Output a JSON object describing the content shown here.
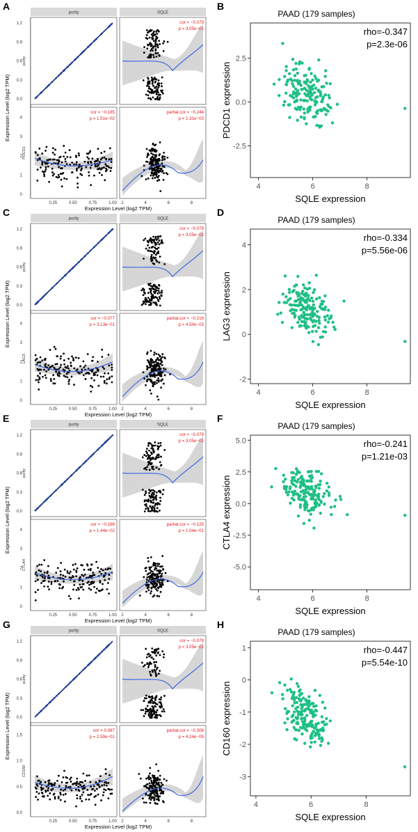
{
  "chart_data": [
    {
      "panel": "A",
      "type": "scatter",
      "facets": [
        "purity",
        "SQLE"
      ],
      "rows": [
        "purity",
        "PDCD1"
      ],
      "ylabel": "Expression Level (log2 TPM)",
      "xlabel": "Expression Level (log2 TPM)",
      "purity_x_ticks": [
        "0.25",
        "0.50",
        "0.75",
        "1.00"
      ],
      "sqle_x_ticks": [
        "2",
        "4",
        "6",
        "8"
      ],
      "purity_row_y_ticks": [
        "0.0",
        "0.3",
        "0.6",
        "0.9",
        "1.2"
      ],
      "gene_row_y_ticks": [
        "0",
        "1",
        "2",
        "3",
        "4"
      ],
      "cor_purity": "cor = −0.079",
      "p_purity": "p = 3.05e−01",
      "cor_gene": "cor = −0.185",
      "p_gene": "p = 1.51e−02",
      "pcor": "partial.cor = −0.244",
      "pp": "p = 1.31e−03",
      "gene_ylim": [
        0,
        4.3
      ],
      "gene_mid": 1.6,
      "gene_spread": 0.9,
      "gene_fit_end": 1.8
    },
    {
      "panel": "B",
      "type": "scatter",
      "title": "PAAD (179 samples)",
      "xlabel": "SQLE expression",
      "ylabel": "PDCD1 expression",
      "rho": "rho=-0.347",
      "p": "p=2.3e-06",
      "xlim": [
        3.7,
        9.6
      ],
      "ylim": [
        -4.3,
        4.5
      ],
      "x_ticks": [
        4,
        6,
        8
      ],
      "y_ticks": [
        -2.5,
        0,
        2.5
      ],
      "x_tick_labels": [
        "4",
        "6",
        "8"
      ],
      "y_tick_labels": [
        "-2.5",
        "0.0",
        "2.5"
      ],
      "center": 0.5,
      "slope": -0.5,
      "spread": 1.3
    },
    {
      "panel": "C",
      "type": "scatter",
      "facets": [
        "purity",
        "SQLE"
      ],
      "rows": [
        "purity",
        "LAG3"
      ],
      "ylabel": "Expression Level (log2 TPM)",
      "xlabel": "Expression Level (log2 TPM)",
      "purity_x_ticks": [
        "0.25",
        "0.50",
        "0.75",
        "1.00"
      ],
      "sqle_x_ticks": [
        "2",
        "4",
        "6",
        "8"
      ],
      "purity_row_y_ticks": [
        "0.0",
        "0.3",
        "0.6",
        "0.9",
        "1.2"
      ],
      "gene_row_y_ticks": [
        "0",
        "1",
        "2",
        "3",
        "4"
      ],
      "cor_purity": "cor = −0.079",
      "p_purity": "p = 3.05e−01",
      "cor_gene": "cor = −0.077",
      "p_gene": "p = 3.13e−01",
      "pcor": "partial.cor = −0.216",
      "pp": "p = 4.50e−03",
      "gene_ylim": [
        0,
        4.3
      ],
      "gene_mid": 1.6,
      "gene_spread": 0.9,
      "gene_fit_end": 2.0
    },
    {
      "panel": "D",
      "type": "scatter",
      "title": "PAAD (179 samples)",
      "xlabel": "SQLE expression",
      "ylabel": "LAG3 expression",
      "rho": "rho=-0.334",
      "p": "p=5.56e-06",
      "xlim": [
        3.7,
        9.6
      ],
      "ylim": [
        -2.2,
        4.7
      ],
      "x_ticks": [
        4,
        6,
        8
      ],
      "y_ticks": [
        -2,
        0,
        2,
        4
      ],
      "x_tick_labels": [
        "4",
        "6",
        "8"
      ],
      "y_tick_labels": [
        "-2",
        "0",
        "2",
        "4"
      ],
      "center": 1.1,
      "slope": -0.5,
      "spread": 1.0
    },
    {
      "panel": "E",
      "type": "scatter",
      "facets": [
        "purity",
        "SQLE"
      ],
      "rows": [
        "purity",
        "CTLA4"
      ],
      "ylabel": "Expression Level (log2 TPM)",
      "xlabel": "Expression Level (log2 TPM)",
      "purity_x_ticks": [
        "0.25",
        "0.50",
        "0.75",
        "1.00"
      ],
      "sqle_x_ticks": [
        "2",
        "4",
        "6",
        "8"
      ],
      "purity_row_y_ticks": [
        "0.0",
        "0.3",
        "0.6",
        "0.9",
        "1.2"
      ],
      "gene_row_y_ticks": [
        "0",
        "1",
        "2",
        "3",
        "4"
      ],
      "cor_purity": "cor = −0.079",
      "p_purity": "p = 3.05e−01",
      "cor_gene": "cor = −0.188",
      "p_gene": "p = 1.44e−02",
      "pcor": "partial.cor = −0.125",
      "pp": "p = 1.04e−01",
      "gene_ylim": [
        0,
        4.3
      ],
      "gene_mid": 1.5,
      "gene_spread": 0.85,
      "gene_fit_end": 1.8
    },
    {
      "panel": "F",
      "type": "scatter",
      "title": "PAAD (179 samples)",
      "xlabel": "SQLE expression",
      "ylabel": "CTLA4 expression",
      "rho": "rho=-0.241",
      "p": "p=1.21e-03",
      "xlim": [
        3.7,
        9.6
      ],
      "ylim": [
        -6.8,
        5.4
      ],
      "x_ticks": [
        4,
        6,
        8
      ],
      "y_ticks": [
        -5,
        -2.5,
        0,
        2.5,
        5
      ],
      "x_tick_labels": [
        "4",
        "6",
        "8"
      ],
      "y_tick_labels": [
        "-5.0",
        "-2.5",
        "0.0",
        "2.5",
        "5.0"
      ],
      "center": 0.8,
      "slope": -0.5,
      "spread": 1.5
    },
    {
      "panel": "G",
      "type": "scatter",
      "facets": [
        "purity",
        "SQLE"
      ],
      "rows": [
        "purity",
        "CD160"
      ],
      "ylabel": "Expression Level (log2 TPM)",
      "xlabel": "Expression Level (log2 TPM)",
      "purity_x_ticks": [
        "0.25",
        "0.50",
        "0.75",
        "1.00"
      ],
      "sqle_x_ticks": [
        "2",
        "4",
        "6",
        "8"
      ],
      "purity_row_y_ticks": [
        "0.0",
        "0.3",
        "0.6",
        "0.9",
        "1.2"
      ],
      "gene_row_y_ticks": [
        "0.0",
        "0.5",
        "1.0",
        "1.5"
      ],
      "cor_purity": "cor = −0.079",
      "p_purity": "p = 3.05e−01",
      "cor_gene": "cor = 0.087",
      "p_gene": "p = 2.59e−01",
      "pcor": "partial.cor = −0.308",
      "pp": "p = 4.24e−05",
      "gene_ylim": [
        0,
        1.6
      ],
      "gene_mid": 0.5,
      "gene_spread": 0.3,
      "gene_fit_end": 0.7
    },
    {
      "panel": "H",
      "type": "scatter",
      "title": "PAAD (179 samples)",
      "xlabel": "SQLE expression",
      "ylabel": "CD160 expression",
      "rho": "rho=-0.447",
      "p": "p=5.54e-10",
      "xlim": [
        3.8,
        9.6
      ],
      "ylim": [
        -3.6,
        1.2
      ],
      "x_ticks": [
        4,
        6,
        8
      ],
      "y_ticks": [
        -3,
        -2,
        -1,
        0,
        1
      ],
      "x_tick_labels": [
        "4",
        "6",
        "8"
      ],
      "y_tick_labels": [
        "-3",
        "-2",
        "-1",
        "0",
        "1"
      ],
      "center": -1.1,
      "slope": -0.55,
      "spread": 0.7
    }
  ]
}
